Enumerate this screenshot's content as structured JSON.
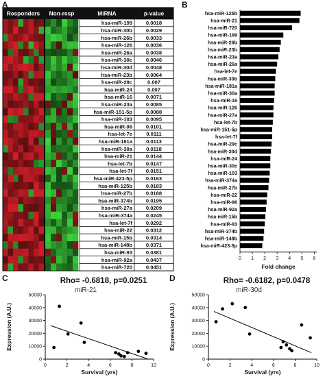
{
  "panels": {
    "a": "A",
    "b": "B",
    "c": "C",
    "d": "D"
  },
  "colors": {
    "red": "#d01f27",
    "green": "#3bd23b",
    "black": "#000000"
  },
  "chart_data": [
    {
      "panel": "A",
      "type": "table",
      "headers": {
        "responders": "Responders",
        "nonresp": "Non-resp",
        "mirna": "MiRNA",
        "pvalue": "p-value"
      },
      "rows": [
        {
          "mirna": "hsa-miR-199",
          "pvalue": "0.0018"
        },
        {
          "mirna": "hsa-miR-30b",
          "pvalue": "0.0029"
        },
        {
          "mirna": "hsa-miR-26b",
          "pvalue": "0.0033"
        },
        {
          "mirna": "hsa-miR-126",
          "pvalue": "0.0036"
        },
        {
          "mirna": "hsa-miR-26a",
          "pvalue": "0.0038"
        },
        {
          "mirna": "hsa-miR-30c",
          "pvalue": "0.0046"
        },
        {
          "mirna": "hsa-miR-30d",
          "pvalue": "0.0048"
        },
        {
          "mirna": "hsa-miR-23b",
          "pvalue": "0.0064"
        },
        {
          "mirna": "hsa-miR-29c",
          "pvalue": "0.007"
        },
        {
          "mirna": "hsa-miR-24",
          "pvalue": "0.007"
        },
        {
          "mirna": "hsa-miR-16",
          "pvalue": "0.0071"
        },
        {
          "mirna": "hsa-miR-23a",
          "pvalue": "0.0085"
        },
        {
          "mirna": "hsa-miR-151-5p",
          "pvalue": "0.0088"
        },
        {
          "mirna": "hsa-miR-103",
          "pvalue": "0.0095"
        },
        {
          "mirna": "hsa-miR-96",
          "pvalue": "0.0101"
        },
        {
          "mirna": "hsa-let-7e",
          "pvalue": "0.0111"
        },
        {
          "mirna": "hsa-miR-181a",
          "pvalue": "0.0113"
        },
        {
          "mirna": "hsa-miR-30a",
          "pvalue": "0.0118"
        },
        {
          "mirna": "hsa-miR-21",
          "pvalue": "0.0144"
        },
        {
          "mirna": "hsa-let-7b",
          "pvalue": "0.0147"
        },
        {
          "mirna": "hsa-let-7f",
          "pvalue": "0.0151"
        },
        {
          "mirna": "hsa-miR-423-5p",
          "pvalue": "0.0163"
        },
        {
          "mirna": "hsa-miR-125b",
          "pvalue": "0.0183"
        },
        {
          "mirna": "hsa-miR-27b",
          "pvalue": "0.0188"
        },
        {
          "mirna": "hsa-miR-374b",
          "pvalue": "0.0195"
        },
        {
          "mirna": "hsa-miR-27a",
          "pvalue": "0.0209"
        },
        {
          "mirna": "hsa-miR-374a",
          "pvalue": "0.0245"
        },
        {
          "mirna": "hsa-let-7f",
          "pvalue": "0.0292"
        },
        {
          "mirna": "hsa-miR-22",
          "pvalue": "0.0312"
        },
        {
          "mirna": "hsa-miR-15b",
          "pvalue": "0.0314"
        },
        {
          "mirna": "hsa-miR-148b",
          "pvalue": "0.0371"
        },
        {
          "mirna": "hsa-miR-93",
          "pvalue": "0.0381"
        },
        {
          "mirna": "hsa-miR-92a",
          "pvalue": "0.0437"
        },
        {
          "mirna": "hsa-miR-720",
          "pvalue": "0.0451"
        }
      ],
      "heatmap_groups": {
        "responders_columns": 8,
        "nonresp_columns": 6
      }
    },
    {
      "panel": "B",
      "type": "bar",
      "orientation": "horizontal",
      "categories": [
        "hsa-miR-125b",
        "hsa-miR-21",
        "hsa-miR-720",
        "hsa-miR-199",
        "hsa-miR-26b",
        "hsa-miR-23b",
        "hsa-miR-23a",
        "hsa-miR-26a",
        "hsa-let-7e",
        "hsa-miR-30b",
        "hsa-miR-181a",
        "hsa-miR-30a",
        "hsa-miR-16",
        "hsa-miR-126",
        "hsa-miR-27a",
        "hsa-let-7b",
        "hsa-miR-151-5p",
        "hsa-let-7f",
        "hsa-miR-29c",
        "hsa-miR-30d",
        "hsa-miR-24",
        "hsa-miR-30c",
        "hsa-miR-103",
        "hsa-miR-374a",
        "hsa-miR-27b",
        "hsa-miR-22",
        "hsa-miR-96",
        "hsa-miR-92a",
        "hsa-miR-15b",
        "hsa-miR-93",
        "hsa-miR-374b",
        "hsa-miR-148b",
        "hsa-miR-423-5p"
      ],
      "values": [
        4.9,
        4.8,
        4.2,
        3.5,
        3.3,
        3.2,
        3.1,
        3.0,
        2.9,
        2.85,
        2.8,
        2.8,
        2.75,
        2.7,
        2.7,
        2.65,
        2.6,
        2.6,
        2.55,
        2.5,
        2.45,
        2.45,
        2.4,
        2.35,
        2.3,
        2.2,
        2.15,
        2.1,
        2.05,
        2.0,
        1.95,
        1.9,
        1.8
      ],
      "xticks": [
        0,
        1,
        2,
        3,
        4,
        5,
        6
      ],
      "xlim": [
        0,
        6.2
      ],
      "xlabel": "Fold change"
    },
    {
      "panel": "C",
      "type": "scatter",
      "title": "Rho= -0.6818, p=0.0251",
      "subtitle": "miR-21",
      "xlabel": "Survival  (yrs)",
      "ylabel": "Expression (A.U.)",
      "xlim": [
        0,
        10
      ],
      "ylim": [
        0,
        50000
      ],
      "xticks": [
        0,
        2,
        4,
        6,
        8,
        10
      ],
      "yticks": [
        0,
        10000,
        20000,
        30000,
        40000,
        50000
      ],
      "points": [
        [
          0.8,
          9000
        ],
        [
          1.3,
          41000
        ],
        [
          2.1,
          19500
        ],
        [
          3.3,
          28000
        ],
        [
          3.6,
          13000
        ],
        [
          6.5,
          5000
        ],
        [
          6.8,
          4000
        ],
        [
          7.0,
          2500
        ],
        [
          7.3,
          2000
        ],
        [
          7.6,
          5000
        ],
        [
          8.6,
          6000
        ],
        [
          9.3,
          4500
        ]
      ],
      "fit": [
        [
          0.5,
          26000
        ],
        [
          9.5,
          0
        ]
      ]
    },
    {
      "panel": "D",
      "type": "scatter",
      "title": "Rho= -0.6182, p=0.0478",
      "subtitle": "miR-30d",
      "xlabel": "Survival  (yrs)",
      "ylabel": "Expression (A.U.)",
      "xlim": [
        0,
        10
      ],
      "ylim": [
        0,
        50000
      ],
      "xticks": [
        0,
        2,
        4,
        6,
        8,
        10
      ],
      "yticks": [
        0,
        10000,
        20000,
        30000,
        40000,
        50000
      ],
      "points": [
        [
          0.7,
          29000
        ],
        [
          1.3,
          39000
        ],
        [
          2.2,
          43000
        ],
        [
          3.4,
          40000
        ],
        [
          3.8,
          19500
        ],
        [
          6.7,
          9000
        ],
        [
          6.9,
          13500
        ],
        [
          7.2,
          11000
        ],
        [
          7.5,
          8000
        ],
        [
          7.7,
          6500
        ],
        [
          8.6,
          26500
        ],
        [
          9.4,
          16500
        ]
      ],
      "fit": [
        [
          0.5,
          37000
        ],
        [
          9.5,
          5000
        ]
      ]
    }
  ]
}
